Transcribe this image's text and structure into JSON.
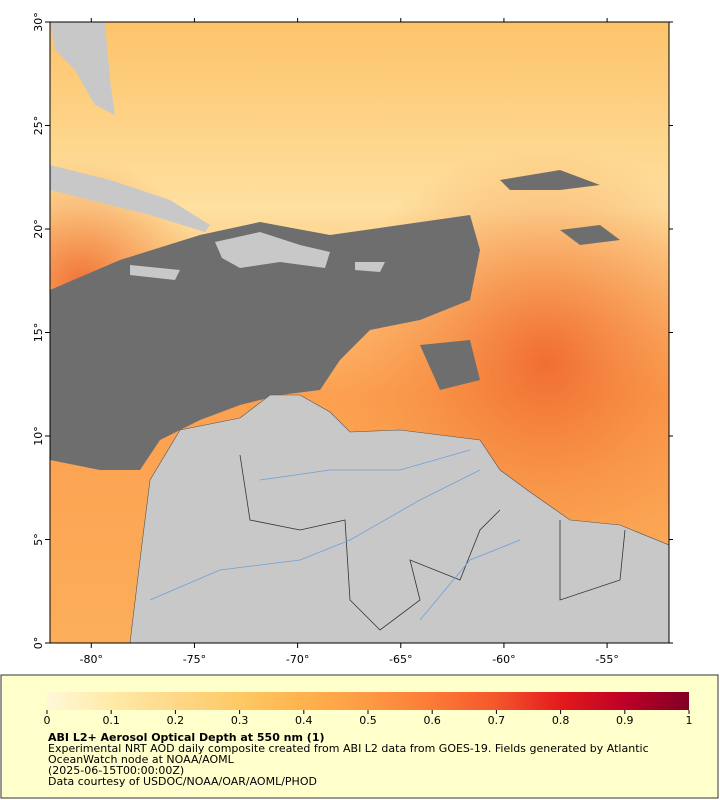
{
  "map": {
    "xlim": [
      -82,
      -52
    ],
    "ylim": [
      0,
      30
    ],
    "xticks": [
      {
        "value": -80,
        "label": "-80°"
      },
      {
        "value": -75,
        "label": "-75°"
      },
      {
        "value": -70,
        "label": "-70°"
      },
      {
        "value": -65,
        "label": "-65°"
      },
      {
        "value": -60,
        "label": "-60°"
      },
      {
        "value": -55,
        "label": "-55°"
      }
    ],
    "yticks": [
      {
        "value": 0,
        "label": "0°"
      },
      {
        "value": 5,
        "label": "5°"
      },
      {
        "value": 10,
        "label": "10°"
      },
      {
        "value": 15,
        "label": "15°"
      },
      {
        "value": 20,
        "label": "20°"
      },
      {
        "value": 25,
        "label": "25°"
      },
      {
        "value": 30,
        "label": "30°"
      }
    ]
  },
  "colorbar": {
    "lim": [
      0,
      1
    ],
    "ticks": [
      0,
      0.1,
      0.2,
      0.3,
      0.4,
      0.5,
      0.6,
      0.7,
      0.8,
      0.9,
      1
    ],
    "colors": [
      "#fff8d8",
      "#ffeaa8",
      "#fed888",
      "#fec965",
      "#feb24c",
      "#fd9a44",
      "#fc7a36",
      "#f4562c",
      "#e31a1c",
      "#bd0026",
      "#800026"
    ]
  },
  "caption": {
    "title": "ABI L2+ Aerosol Optical Depth at 550 nm (1)",
    "description": "Experimental NRT AOD daily composite created from ABI L2 data from GOES-19. Fields generated by Atlantic OceanWatch node at NOAA/AOML",
    "time": "(2025-06-15T00:00:00Z)",
    "credit": "Data courtesy of USDOC/NOAA/OAR/AOML/PHOD"
  }
}
